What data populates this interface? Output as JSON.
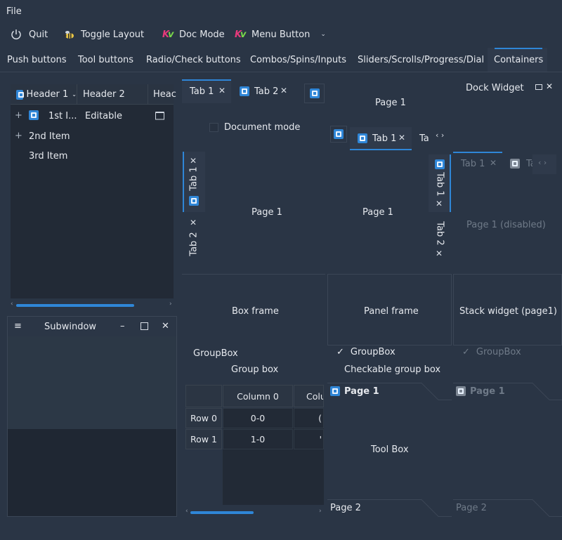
{
  "menubar": {
    "file": "File"
  },
  "toolbar": {
    "quit": "Quit",
    "toggle_layout": "Toggle Layout",
    "doc_mode": "Doc Mode",
    "menu_button": "Menu Button"
  },
  "main_tabs": [
    "Push buttons",
    "Tool buttons",
    "Radio/Check buttons",
    "Combos/Spins/Inputs",
    "Sliders/Scrolls/Progress/Dial",
    "Containers"
  ],
  "tree": {
    "headers": [
      "Header 1",
      "Header 2",
      "Heac"
    ],
    "items": [
      {
        "col1": "1st I...",
        "col2": "Editable"
      },
      {
        "col1": "2nd Item"
      },
      {
        "col1": "3rd Item"
      }
    ]
  },
  "subwindow": {
    "title": "Subwindow"
  },
  "tabs_top": {
    "tab1": "Tab 1",
    "tab2": "Tab 2",
    "page": "Page 1",
    "document_mode": "Document mode"
  },
  "tabs_right_top": {
    "page": "Page 1",
    "tab1": "Tab 1",
    "tab_partial": "Ta"
  },
  "vertical_tabs_left": {
    "tab1": "Tab 1",
    "tab2": "Tab 2",
    "page": "Page 1"
  },
  "vertical_tabs_right": {
    "tab1": "Tab 1",
    "tab2": "Tab 2",
    "page": "Page 1"
  },
  "dock": {
    "title": "Dock Widget",
    "tab1": "Tab 1",
    "tab_partial": "Ta",
    "page_disabled": "Page 1 (disabled)"
  },
  "frames": {
    "box": "Box frame",
    "panel": "Panel frame",
    "stack": "Stack widget (page1)"
  },
  "groups": {
    "groupbox1": "GroupBox",
    "caption1": "Group box",
    "groupbox2": "GroupBox",
    "caption2": "Checkable group box",
    "groupbox3": "GroupBox"
  },
  "table": {
    "columns": [
      "Column 0",
      "Colu"
    ],
    "rows": [
      {
        "header": "Row 0",
        "c0": "0-0",
        "c1": "("
      },
      {
        "header": "Row 1",
        "c0": "1-0",
        "c1": "'"
      }
    ]
  },
  "toolbox": {
    "page1": "Page 1",
    "center": "Tool Box",
    "page2": "Page 2"
  },
  "toolbox_disabled": {
    "page1": "Page 1",
    "page2": "Page 2"
  },
  "colors": {
    "accent": "#2f86d7",
    "background": "#2a3545",
    "panel": "#222a36"
  }
}
